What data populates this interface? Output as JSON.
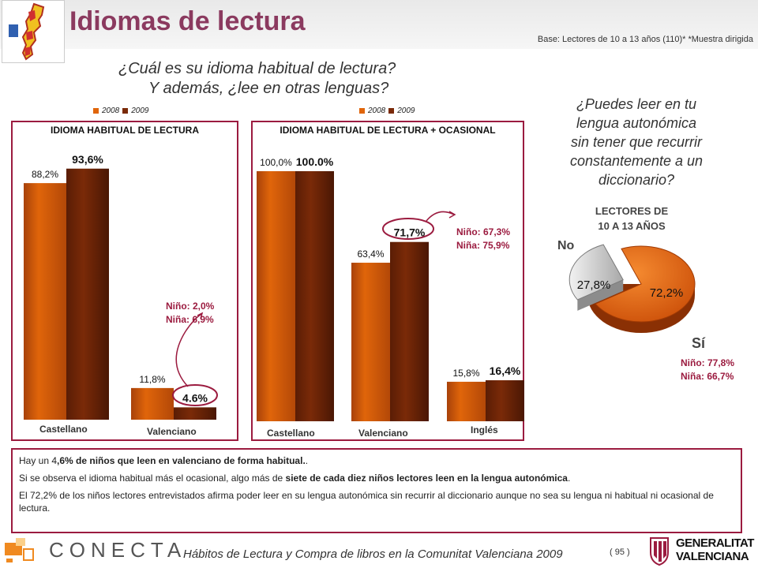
{
  "header": {
    "title": "Idiomas de lectura",
    "base_note": "Base: Lectores de 10 a 13 años (110)*   *Muestra dirigida"
  },
  "question": {
    "main": "¿Cuál es su idioma habitual de lectura?",
    "sub": "Y además, ¿lee en otras lenguas?"
  },
  "colors": {
    "y2008": "#e0650a",
    "y2009": "#7a2a08",
    "accent": "#9b1b3f",
    "pie_si": "#e05a0a",
    "pie_no": "#c8c8c8"
  },
  "legend": {
    "y2008": "2008",
    "y2009": "2009"
  },
  "chart_data": [
    {
      "type": "bar",
      "title": "IDIOMA HABITUAL DE LECTURA",
      "categories": [
        "Castellano",
        "Valenciano"
      ],
      "series": [
        {
          "name": "2008",
          "values": [
            88.2,
            11.8
          ],
          "labels": [
            "88,2%",
            "11,8%"
          ]
        },
        {
          "name": "2009",
          "values": [
            93.6,
            4.6
          ],
          "labels": [
            "93,6%",
            "4.6%"
          ]
        }
      ],
      "ylim": [
        0,
        100
      ],
      "annotation": {
        "line1": "Niño: 2,0%",
        "line2": "Niña: 6,9%"
      }
    },
    {
      "type": "bar",
      "title": "IDIOMA HABITUAL DE LECTURA + OCASIONAL",
      "categories": [
        "Castellano",
        "Valenciano",
        "Inglés"
      ],
      "series": [
        {
          "name": "2008",
          "values": [
            100.0,
            63.4,
            15.8
          ],
          "labels": [
            "100,0%",
            "63,4%",
            "15,8%"
          ]
        },
        {
          "name": "2009",
          "values": [
            100.0,
            71.7,
            16.4
          ],
          "labels": [
            "100.0%",
            "71,7%",
            "16,4%"
          ]
        }
      ],
      "ylim": [
        0,
        100
      ],
      "annotation": {
        "line1": "Niño: 67,3%",
        "line2": "Niña: 75,9%"
      }
    },
    {
      "type": "pie",
      "title": "LECTORES DE 10 A 13 AÑOS",
      "title_line1": "LECTORES DE",
      "title_line2": "10 A 13 AÑOS",
      "slices": [
        {
          "name": "Sí",
          "value": 72.2,
          "label": "72,2%"
        },
        {
          "name": "No",
          "value": 27.8,
          "label": "27,8%"
        }
      ],
      "annotation": {
        "line1": "Niño: 77,8%",
        "line2": "Niña: 66,7%"
      }
    }
  ],
  "right_question": {
    "line1": "¿Puedes leer en tu",
    "line2": "lengua autonómica",
    "line3": "sin tener que recurrir",
    "line4": "constantemente a un",
    "line5": "diccionario?"
  },
  "notes": {
    "p1_a": "Hay un 4",
    "p1_b": ",6% de niños que leen en valenciano de forma habitual.",
    "p1_c": ".",
    "p2_a": "Si se observa el idioma habitual más el ocasional, algo más de ",
    "p2_b": "siete de cada diez niños lectores leen en la lengua autonómica",
    "p2_c": ".",
    "p3": "El 72,2% de los niños lectores entrevistados afirma poder leer en su lengua autonómica sin recurrir al diccionario aunque no sea su lengua ni habitual ni ocasional de lectura."
  },
  "footer": {
    "conecta": "CONECTA",
    "study": "Hábitos de Lectura y Compra de libros en la Comunitat Valenciana 2009",
    "page": "( 95 )",
    "gv1": "GENERALITAT",
    "gv2": "VALENCIANA"
  }
}
